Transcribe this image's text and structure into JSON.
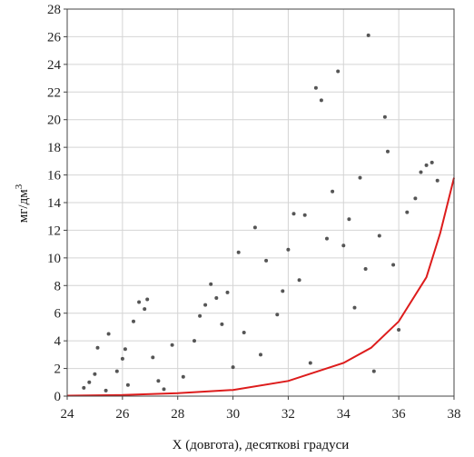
{
  "chart_data": {
    "type": "scatter",
    "xlabel": "X (довгота), десяткові градуси",
    "ylabel": "мг/дм",
    "ylabel_sup": "3",
    "xlim": [
      24,
      38
    ],
    "ylim": [
      0,
      28
    ],
    "xticks": [
      "24",
      "26",
      "28",
      "30",
      "32",
      "34",
      "36",
      "38"
    ],
    "yticks": [
      "0",
      "2",
      "4",
      "6",
      "8",
      "10",
      "12",
      "14",
      "16",
      "18",
      "20",
      "22",
      "24",
      "26",
      "28"
    ],
    "grid": true,
    "colors": {
      "points": "#555555",
      "curve": "#dd1c1c",
      "grid": "#d4d4d4",
      "frame": "#444444"
    },
    "fit_curve": {
      "model": "exponential",
      "x": [
        24,
        26,
        28,
        30,
        32,
        34,
        35,
        36,
        37,
        37.5,
        38
      ],
      "y": [
        0.03,
        0.08,
        0.22,
        0.45,
        1.1,
        2.4,
        3.5,
        5.4,
        8.6,
        11.8,
        15.8
      ]
    },
    "points": [
      [
        24.6,
        0.6
      ],
      [
        24.8,
        1.0
      ],
      [
        25.0,
        1.6
      ],
      [
        25.1,
        3.5
      ],
      [
        25.4,
        0.4
      ],
      [
        25.5,
        4.5
      ],
      [
        25.8,
        1.8
      ],
      [
        26.0,
        2.7
      ],
      [
        26.1,
        3.4
      ],
      [
        26.2,
        0.8
      ],
      [
        26.4,
        5.4
      ],
      [
        26.6,
        6.8
      ],
      [
        26.8,
        6.3
      ],
      [
        26.9,
        7.0
      ],
      [
        27.1,
        2.8
      ],
      [
        27.3,
        1.1
      ],
      [
        27.5,
        0.5
      ],
      [
        27.8,
        3.7
      ],
      [
        28.2,
        1.4
      ],
      [
        28.6,
        4.0
      ],
      [
        28.8,
        5.8
      ],
      [
        29.0,
        6.6
      ],
      [
        29.2,
        8.1
      ],
      [
        29.4,
        7.1
      ],
      [
        29.6,
        5.2
      ],
      [
        29.8,
        7.5
      ],
      [
        30.0,
        2.1
      ],
      [
        30.2,
        10.4
      ],
      [
        30.4,
        4.6
      ],
      [
        30.8,
        12.2
      ],
      [
        31.0,
        3.0
      ],
      [
        31.2,
        9.8
      ],
      [
        31.6,
        5.9
      ],
      [
        31.8,
        7.6
      ],
      [
        32.0,
        10.6
      ],
      [
        32.2,
        13.2
      ],
      [
        32.4,
        8.4
      ],
      [
        32.6,
        13.1
      ],
      [
        32.8,
        2.4
      ],
      [
        33.0,
        22.3
      ],
      [
        33.2,
        21.4
      ],
      [
        33.4,
        11.4
      ],
      [
        33.6,
        14.8
      ],
      [
        33.8,
        23.5
      ],
      [
        34.0,
        10.9
      ],
      [
        34.2,
        12.8
      ],
      [
        34.4,
        6.4
      ],
      [
        34.6,
        15.8
      ],
      [
        34.8,
        9.2
      ],
      [
        34.9,
        26.1
      ],
      [
        35.1,
        1.8
      ],
      [
        35.3,
        11.6
      ],
      [
        35.5,
        20.2
      ],
      [
        35.6,
        17.7
      ],
      [
        35.8,
        9.5
      ],
      [
        36.0,
        4.8
      ],
      [
        36.3,
        13.3
      ],
      [
        36.6,
        14.3
      ],
      [
        36.8,
        16.2
      ],
      [
        37.0,
        16.7
      ],
      [
        37.2,
        16.9
      ],
      [
        37.4,
        15.6
      ]
    ]
  }
}
